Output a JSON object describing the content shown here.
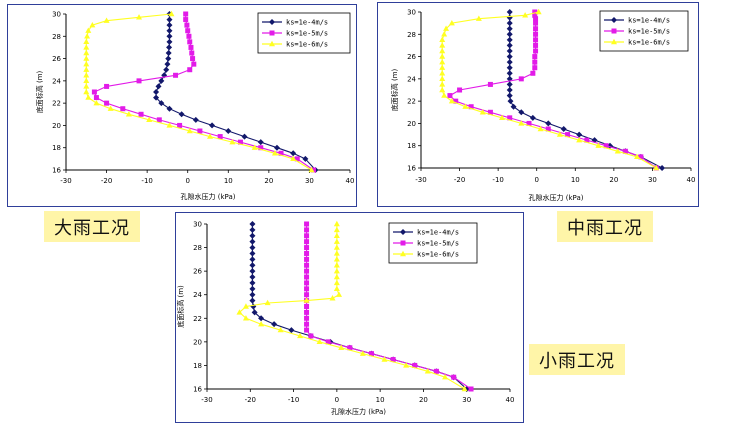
{
  "labels": [
    "大雨工况",
    "中雨工况",
    "小雨工况"
  ],
  "colors": {
    "ks_1e_4": "#12186b",
    "ks_1e_5": "#e21be8",
    "ks_1e_6": "#ffff22",
    "frame": "#2f3f9a",
    "label_bg": "#fff5a8"
  },
  "chart_data": [
    {
      "type": "line",
      "title": "",
      "xlabel": "孔隙水压力 (kPa)",
      "ylabel": "底面标高 (m)",
      "xlim": [
        -30,
        40
      ],
      "ylim": [
        16,
        30
      ],
      "xticks": [
        "-30",
        "-20",
        "-10",
        "0",
        "10",
        "20",
        "30",
        "40"
      ],
      "yticks": [
        "16",
        "18",
        "20",
        "22",
        "24",
        "26",
        "28",
        "30"
      ],
      "legend_position": "top-right",
      "series": [
        {
          "name": "ks=1e-4m/s",
          "color": "#12186b",
          "marker": "diamond",
          "x": [
            -4.5,
            -4.5,
            -4.5,
            -4.5,
            -4.5,
            -4.5,
            -4.6,
            -4.7,
            -4.8,
            -5.0,
            -5.3,
            -5.8,
            -6.5,
            -7.2,
            -7.8,
            -7.8,
            -6.5,
            -4.5,
            -1.5,
            2.0,
            6.0,
            10.0,
            14.0,
            18.0,
            22.0,
            26.0,
            29.0,
            31.5
          ],
          "y": [
            30,
            29.5,
            29,
            28.5,
            28,
            27.5,
            27,
            26.5,
            26,
            25.5,
            25,
            24.5,
            24,
            23.5,
            23,
            22.5,
            22,
            21.5,
            21,
            20.5,
            20,
            19.5,
            19,
            18.5,
            18,
            17.5,
            17,
            16
          ]
        },
        {
          "name": "ks=1e-5m/s",
          "color": "#e21be8",
          "marker": "square",
          "x": [
            -0.5,
            -0.5,
            -0.2,
            0,
            0.3,
            0.5,
            0.8,
            1.0,
            1.2,
            1.5,
            0.5,
            -3.0,
            -12.0,
            -20.0,
            -23.0,
            -22.5,
            -20.0,
            -16.0,
            -11.5,
            -7.0,
            -2.0,
            3.0,
            8.0,
            13.0,
            18.0,
            23.0,
            27.0,
            31.0
          ],
          "y": [
            30,
            29.5,
            29,
            28.5,
            28,
            27.5,
            27,
            26.5,
            26,
            25.5,
            25,
            24.5,
            24,
            23.5,
            23,
            22.5,
            22,
            21.5,
            21,
            20.5,
            20,
            19.5,
            19,
            18.5,
            18,
            17.5,
            17,
            16
          ]
        },
        {
          "name": "ks=1e-6m/s",
          "color": "#ffff22",
          "marker": "triangle",
          "x": [
            -4.0,
            -12.0,
            -20.0,
            -23.5,
            -24.5,
            -24.8,
            -25.0,
            -25.0,
            -25.0,
            -25.0,
            -25.0,
            -25.0,
            -25.0,
            -25.0,
            -25.0,
            -25.0,
            -24.5,
            -22.5,
            -19.0,
            -14.5,
            -9.5,
            -4.5,
            0.5,
            5.5,
            11.0,
            16.5,
            21.5,
            26.0,
            30.5
          ],
          "y": [
            30,
            29.7,
            29.4,
            29,
            28.5,
            28,
            27.5,
            27,
            26.5,
            26,
            25.5,
            25,
            24.5,
            24,
            23.5,
            23,
            22.5,
            22,
            21.5,
            21,
            20.5,
            20,
            19.5,
            19,
            18.5,
            18,
            17.5,
            17,
            16
          ]
        }
      ]
    },
    {
      "type": "line",
      "title": "",
      "xlabel": "孔隙水压力 (kPa)",
      "ylabel": "底面标高 (m)",
      "xlim": [
        -30,
        40
      ],
      "ylim": [
        16,
        30
      ],
      "xticks": [
        "-30",
        "-20",
        "-10",
        "0",
        "10",
        "20",
        "30",
        "40"
      ],
      "yticks": [
        "16",
        "18",
        "20",
        "22",
        "24",
        "26",
        "28",
        "30"
      ],
      "legend_position": "top-right",
      "series": [
        {
          "name": "ks=1e-4m/s",
          "color": "#12186b",
          "marker": "diamond",
          "x": [
            -7,
            -7,
            -7,
            -7,
            -7,
            -7,
            -7,
            -7,
            -7,
            -7,
            -7,
            -7,
            -7,
            -7,
            -7,
            -7,
            -6.8,
            -6.0,
            -4.0,
            -1.0,
            3.0,
            7.0,
            11.0,
            15.0,
            19.0,
            23.0,
            27.0,
            32.5
          ],
          "y": [
            30,
            29.5,
            29,
            28.5,
            28,
            27.5,
            27,
            26.5,
            26,
            25.5,
            25,
            24.5,
            24,
            23.5,
            23,
            22.5,
            22,
            21.5,
            21,
            20.5,
            20,
            19.5,
            19,
            18.5,
            18,
            17.5,
            17,
            16
          ]
        },
        {
          "name": "ks=1e-5m/s",
          "color": "#e21be8",
          "marker": "square",
          "x": [
            -0.5,
            -0.5,
            -0.3,
            -0.3,
            -0.3,
            -0.3,
            -0.3,
            -0.3,
            -0.3,
            -0.5,
            -0.5,
            -0.5,
            -1.0,
            -4.0,
            -12.0,
            -20.0,
            -22.5,
            -21.0,
            -17.0,
            -12.0,
            -7.0,
            -2.0,
            3.0,
            8.0,
            13.0,
            18.0,
            23.0,
            27.0,
            31.0
          ],
          "y": [
            30,
            29.7,
            29.4,
            29,
            28.5,
            28,
            27.5,
            27,
            26.5,
            26,
            25.5,
            25,
            24.5,
            24,
            23.5,
            23,
            22.5,
            22,
            21.5,
            21,
            20.5,
            20,
            19.5,
            19,
            18.5,
            18,
            17.5,
            17,
            16
          ]
        },
        {
          "name": "ks=1e-6m/s",
          "color": "#ffff22",
          "marker": "triangle",
          "x": [
            0.5,
            -3.0,
            -15.0,
            -22.0,
            -23.5,
            -24.0,
            -24.5,
            -24.5,
            -24.5,
            -24.5,
            -24.5,
            -24.5,
            -24.5,
            -24.5,
            -24.5,
            -24.5,
            -24.0,
            -22.0,
            -18.5,
            -14.0,
            -9.0,
            -4.0,
            1.0,
            6.0,
            11.0,
            16.0,
            21.0,
            26.0,
            31.0
          ],
          "y": [
            30,
            29.7,
            29.4,
            29,
            28.5,
            28,
            27.5,
            27,
            26.5,
            26,
            25.5,
            25,
            24.5,
            24,
            23.5,
            23,
            22.5,
            22,
            21.5,
            21,
            20.5,
            20,
            19.5,
            19,
            18.5,
            18,
            17.5,
            17,
            16
          ]
        }
      ]
    },
    {
      "type": "line",
      "title": "",
      "xlabel": "孔隙水压力 (kPa)",
      "ylabel": "底面标高 (m)",
      "xlim": [
        -30,
        40
      ],
      "ylim": [
        16,
        30
      ],
      "xticks": [
        "-30",
        "-20",
        "-10",
        "0",
        "10",
        "20",
        "30",
        "40"
      ],
      "yticks": [
        "16",
        "18",
        "20",
        "22",
        "24",
        "26",
        "28",
        "30"
      ],
      "legend_position": "top-right",
      "series": [
        {
          "name": "ks=1e-4m/s",
          "color": "#12186b",
          "marker": "diamond",
          "x": [
            -19.5,
            -19.5,
            -19.5,
            -19.5,
            -19.5,
            -19.5,
            -19.5,
            -19.5,
            -19.5,
            -19.5,
            -19.5,
            -19.5,
            -19.5,
            -19.5,
            -19.3,
            -19.0,
            -17.5,
            -14.5,
            -10.5,
            -6.0,
            -1.5,
            3.0,
            8.0,
            13.0,
            18.0,
            23.0,
            27.0,
            30.0
          ],
          "y": [
            30,
            29.5,
            29,
            28.5,
            28,
            27.5,
            27,
            26.5,
            26,
            25.5,
            25,
            24.5,
            24,
            23.5,
            23,
            22.5,
            22,
            21.5,
            21,
            20.5,
            20,
            19.5,
            19,
            18.5,
            18,
            17.5,
            17,
            16
          ]
        },
        {
          "name": "ks=1e-5m/s",
          "color": "#e21be8",
          "marker": "square",
          "x": [
            -7,
            -7,
            -7,
            -7,
            -7,
            -7,
            -7,
            -7,
            -7,
            -7,
            -7,
            -7,
            -7,
            -7,
            -7,
            -7,
            -7,
            -7,
            -7,
            -6.0,
            -2.0,
            3.0,
            8.0,
            13.0,
            18.0,
            23.0,
            27.0,
            31.0
          ],
          "y": [
            30,
            29.5,
            29,
            28.5,
            28,
            27.5,
            27,
            26.5,
            26,
            25.5,
            25,
            24.5,
            24,
            23.5,
            23,
            22.5,
            22,
            21.5,
            21,
            20.5,
            20,
            19.5,
            19,
            18.5,
            18,
            17.5,
            17,
            16
          ]
        },
        {
          "name": "ks=1e-6m/s",
          "color": "#ffff22",
          "marker": "triangle",
          "x": [
            0,
            0,
            0,
            0,
            0,
            0,
            0,
            0,
            0,
            0,
            0,
            0,
            0.5,
            -1.0,
            -7.0,
            -16.0,
            -21.0,
            -22.5,
            -21.0,
            -17.5,
            -13.0,
            -8.5,
            -4.0,
            1.0,
            6.0,
            11.0,
            16.0,
            21.0,
            25.0,
            29.5
          ],
          "y": [
            30,
            29.5,
            29,
            28.5,
            28,
            27.5,
            27,
            26.5,
            26,
            25.5,
            25,
            24.5,
            24,
            23.7,
            23.5,
            23.3,
            23,
            22.5,
            22,
            21.5,
            21,
            20.5,
            20,
            19.5,
            19,
            18.5,
            18,
            17.5,
            17,
            16
          ]
        }
      ]
    }
  ]
}
